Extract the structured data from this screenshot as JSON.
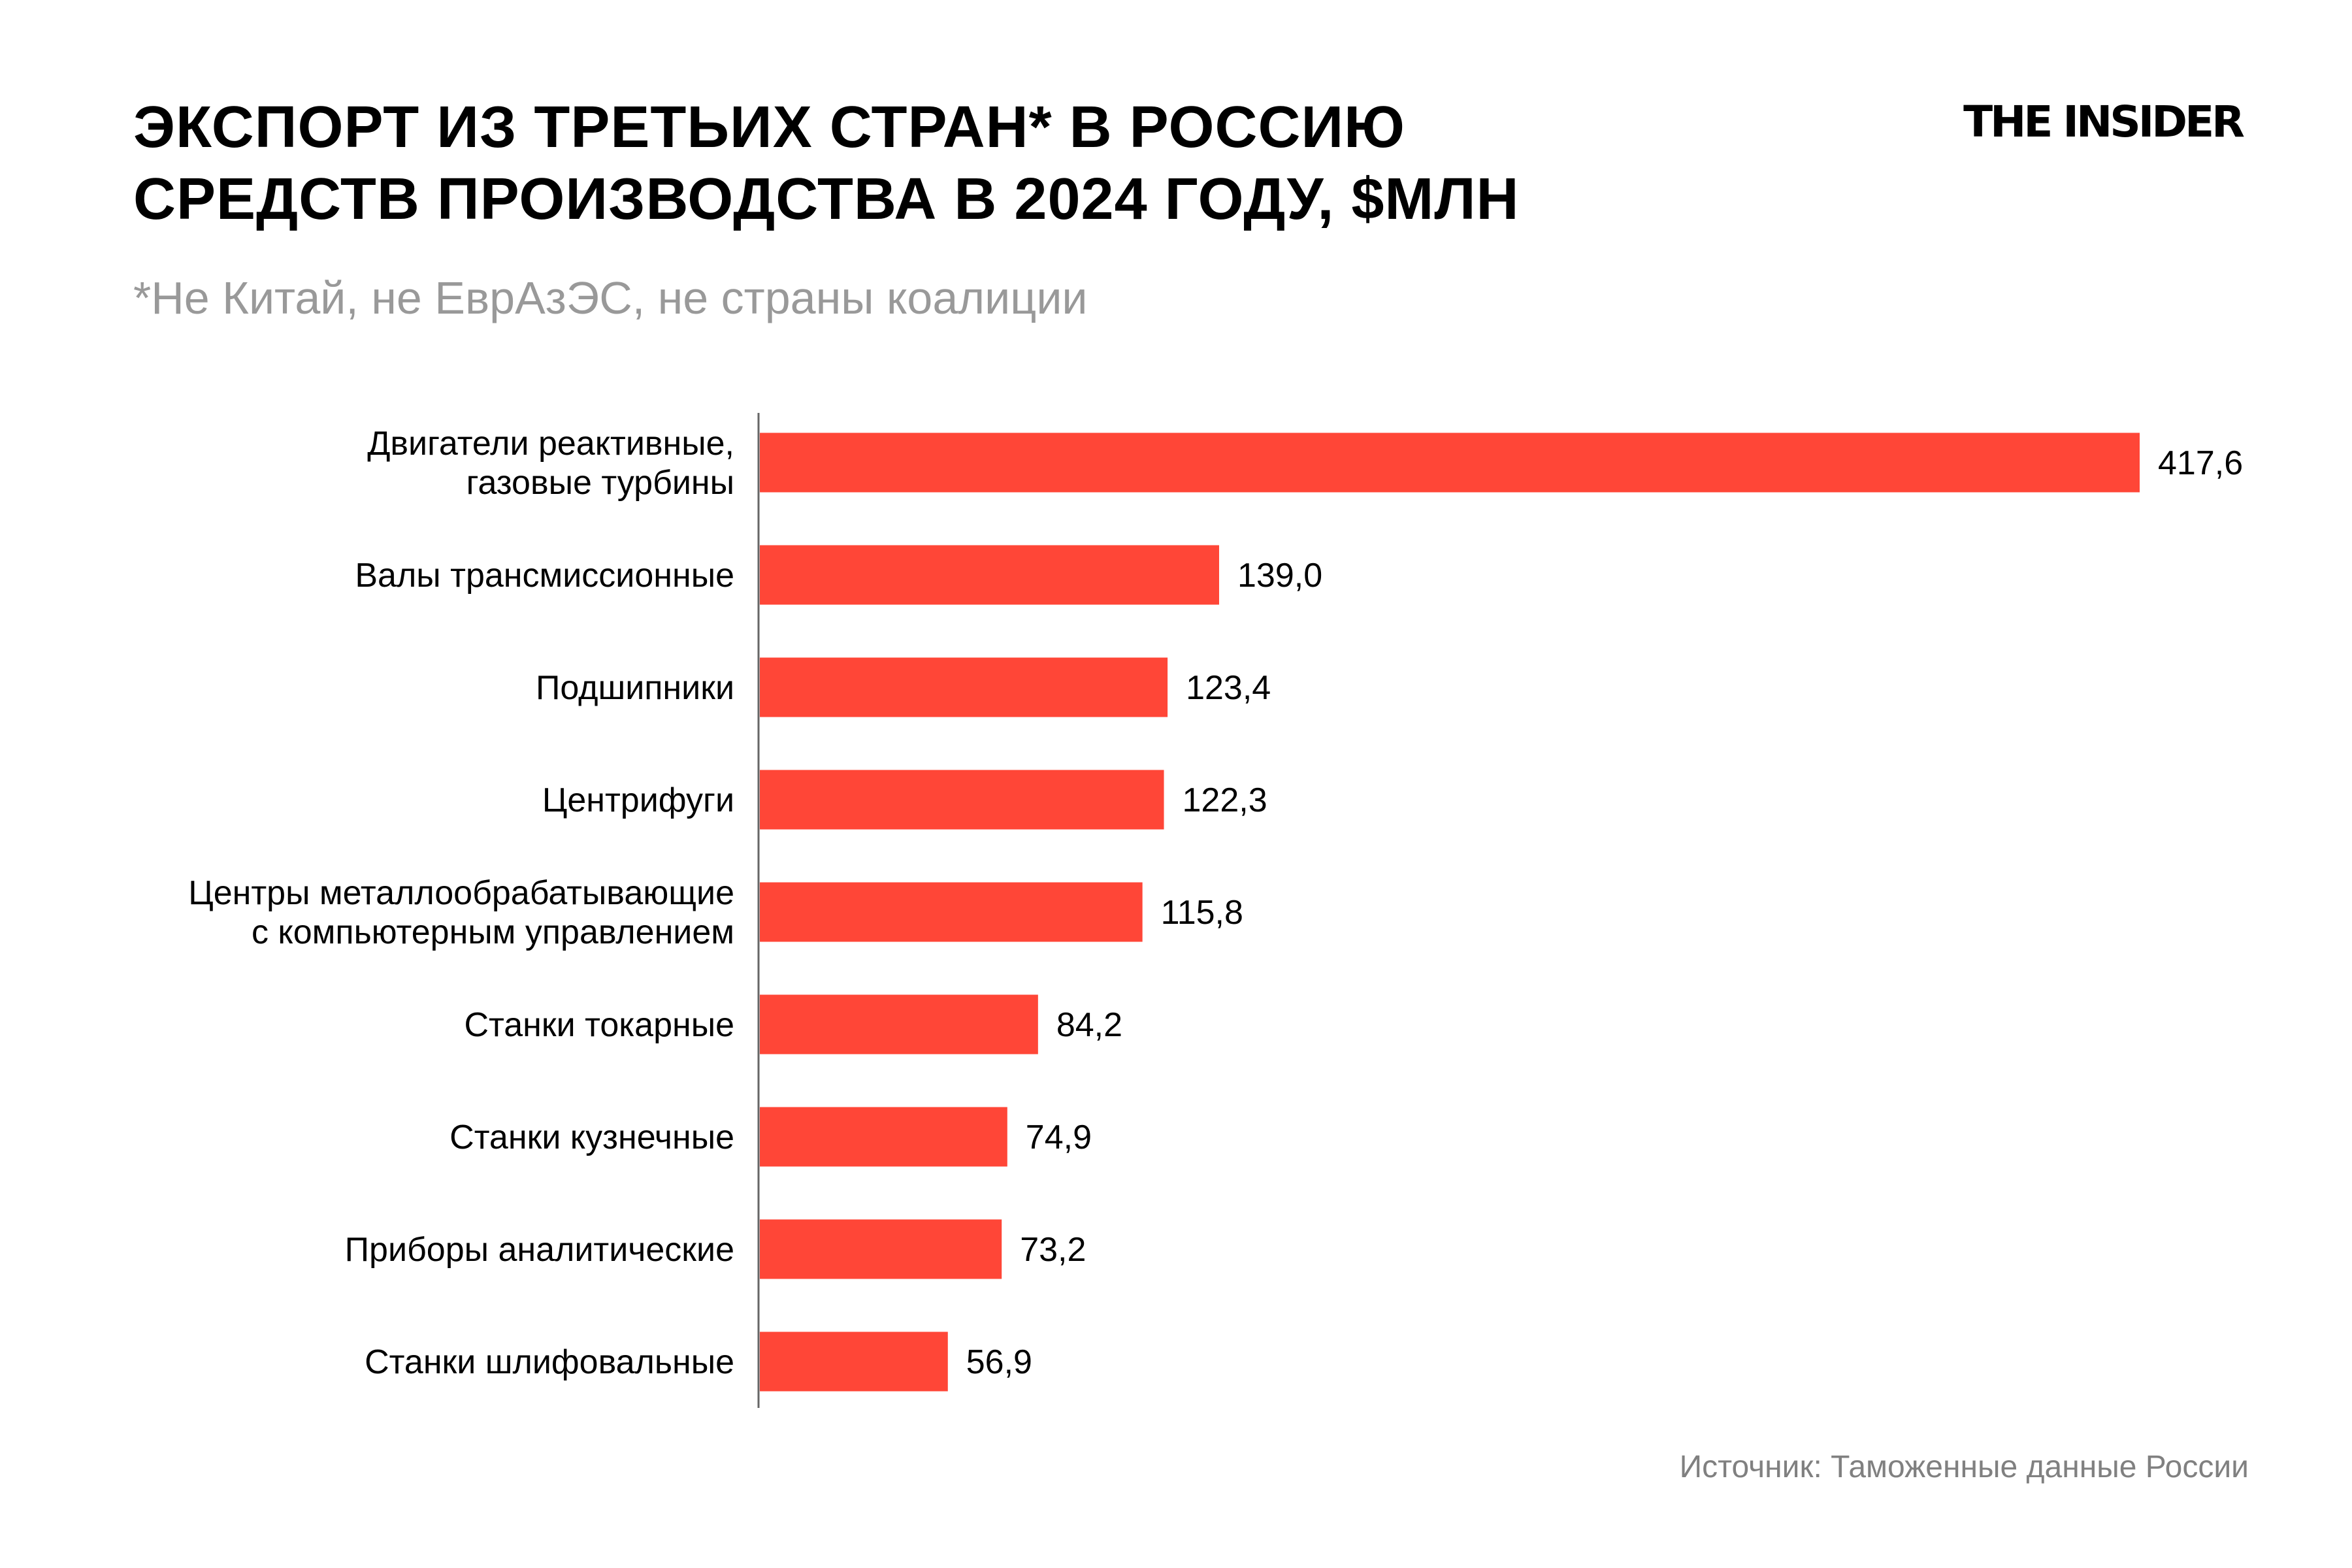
{
  "title_lines": [
    "ЭКСПОРТ ИЗ ТРЕТЬИХ СТРАН* В РОССИЮ",
    "СРЕДСТВ ПРОИЗВОДСТВА В 2024 ГОДУ, $МЛН"
  ],
  "subtitle": "*Не Китай, не ЕврАзЭС, не страны коалиции",
  "logo": "THE INSIDER",
  "source": "Источник: Таможенные данные России",
  "colors": {
    "bar": "#FF4637",
    "axis": "#666666"
  },
  "chart_data": {
    "type": "bar",
    "orientation": "horizontal",
    "categories": [
      [
        "Двигатели реактивные,",
        "газовые турбины"
      ],
      [
        "Валы трансмиссионные"
      ],
      [
        "Подшипники"
      ],
      [
        "Центрифуги"
      ],
      [
        "Центры металлообрабатывающие",
        "с компьютерным управлением"
      ],
      [
        "Станки токарные"
      ],
      [
        "Станки кузнечные"
      ],
      [
        "Приборы аналитические"
      ],
      [
        "Станки шлифовальные"
      ]
    ],
    "values": [
      417.6,
      139.0,
      123.4,
      122.3,
      115.8,
      84.2,
      74.9,
      73.2,
      56.9
    ],
    "value_labels": [
      "417,6",
      "139,0",
      "123,4",
      "122,3",
      "115,8",
      "84,2",
      "74,9",
      "73,2",
      "56,9"
    ],
    "grid": false,
    "legend": "none"
  }
}
